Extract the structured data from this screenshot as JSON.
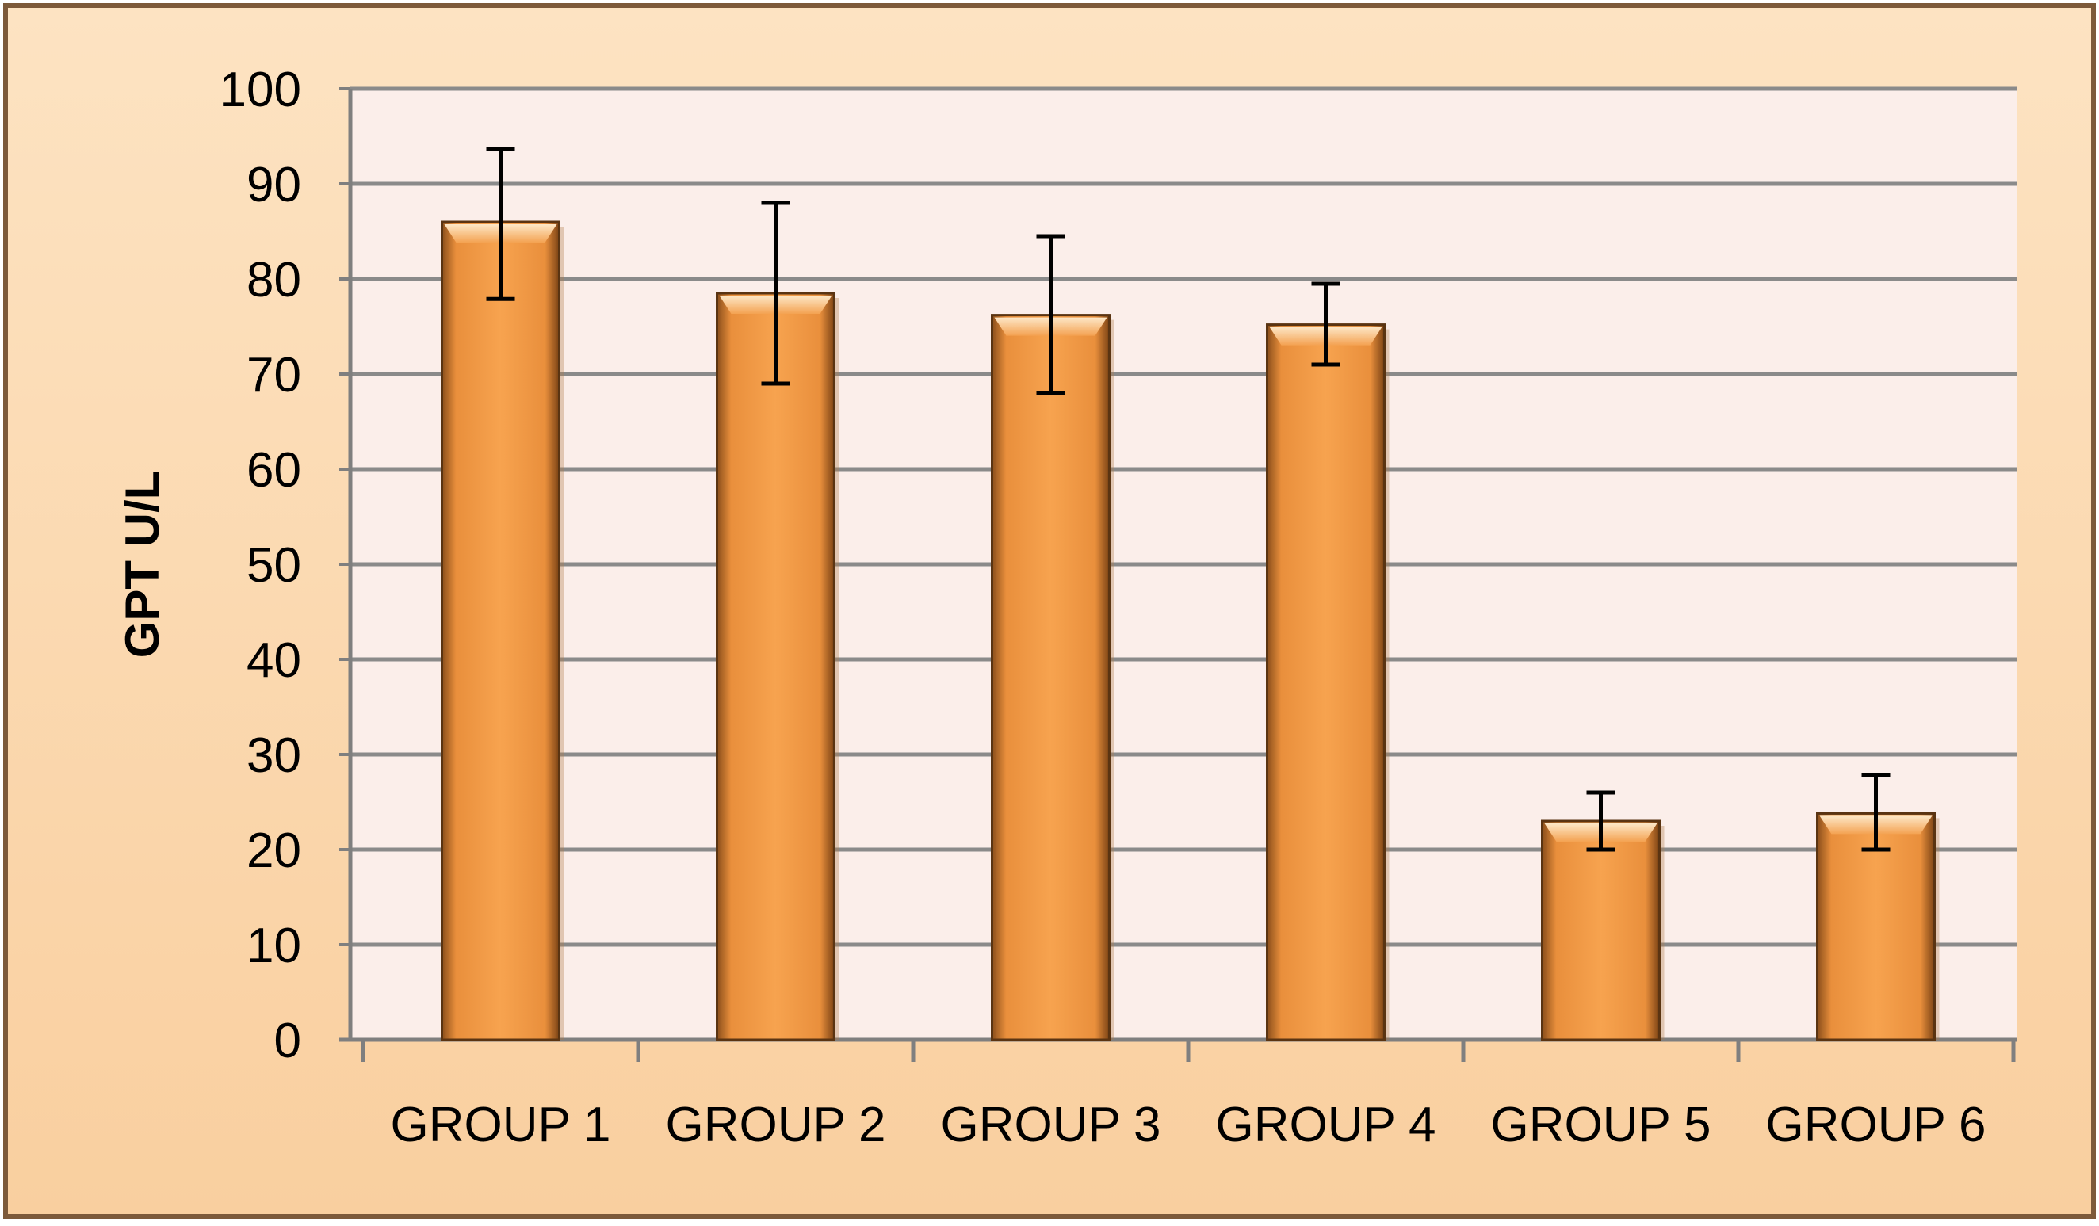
{
  "chart_data": {
    "type": "bar",
    "title": "",
    "xlabel": "",
    "ylabel": "GPT U/L",
    "ylim": [
      0,
      100
    ],
    "yticks": [
      0,
      10,
      20,
      30,
      40,
      50,
      60,
      70,
      80,
      90,
      100
    ],
    "grid": true,
    "legend": "none",
    "categories": [
      "GROUP 1",
      "GROUP 2",
      "GROUP 3",
      "GROUP 4",
      "GROUP 5",
      "GROUP 6"
    ],
    "values": [
      86,
      78.5,
      76.2,
      75.2,
      23,
      23.8
    ],
    "error_upper": [
      93.7,
      88,
      84.5,
      79.5,
      26,
      27.8
    ],
    "error_lower": [
      77.9,
      69,
      68,
      71,
      20,
      20
    ],
    "colors": {
      "bar": "#f6a04c",
      "bar_edge": "#5a3412",
      "plot_bg": "#fbeeea",
      "frame": "#fcd9b0",
      "grid": "#8a8a8a",
      "axis": "#7f7f7f",
      "text": "#000000"
    }
  }
}
